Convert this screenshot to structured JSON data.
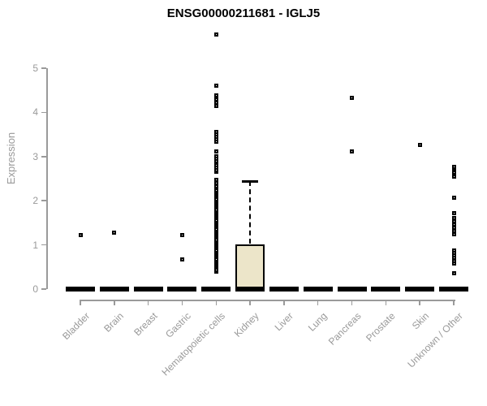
{
  "chart_data": {
    "type": "box",
    "title": "ENSG00000211681 - IGLJ5",
    "ylabel": "Expression",
    "xlabel": "",
    "ylim": [
      0,
      5
    ],
    "yticks": [
      0,
      1,
      2,
      3,
      4,
      5
    ],
    "grid": false,
    "legend": false,
    "categories": [
      "Bladder",
      "Brain",
      "Breast",
      "Gastric",
      "Hematopoietic cells",
      "Kidney",
      "Liver",
      "Lung",
      "Pancreas",
      "Prostate",
      "Skin",
      "Unknown / Other"
    ],
    "boxes": [
      {
        "category": "Bladder",
        "median": 0,
        "q1": 0,
        "q3": 0,
        "whisker_low": 0,
        "whisker_high": 0,
        "outliers": [
          1.23
        ]
      },
      {
        "category": "Brain",
        "median": 0,
        "q1": 0,
        "q3": 0,
        "whisker_low": 0,
        "whisker_high": 0,
        "outliers": [
          1.27
        ]
      },
      {
        "category": "Breast",
        "median": 0,
        "q1": 0,
        "q3": 0,
        "whisker_low": 0,
        "whisker_high": 0,
        "outliers": []
      },
      {
        "category": "Gastric",
        "median": 0,
        "q1": 0,
        "q3": 0,
        "whisker_low": 0,
        "whisker_high": 0,
        "outliers": [
          1.23,
          0.68
        ]
      },
      {
        "category": "Hematopoietic cells",
        "median": 0,
        "q1": 0,
        "q3": 0,
        "whisker_low": 0,
        "whisker_high": 0,
        "outliers": [
          0.4,
          0.44,
          0.48,
          0.52,
          0.56,
          0.6,
          0.64,
          0.68,
          0.72,
          0.76,
          0.8,
          0.84,
          0.88,
          0.92,
          0.96,
          1.0,
          1.04,
          1.08,
          1.12,
          1.16,
          1.2,
          1.24,
          1.28,
          1.32,
          1.36,
          1.4,
          1.44,
          1.48,
          1.52,
          1.56,
          1.6,
          1.64,
          1.68,
          1.72,
          1.76,
          1.8,
          1.84,
          1.88,
          1.92,
          1.96,
          2.0,
          2.04,
          2.08,
          2.12,
          2.16,
          2.2,
          2.24,
          2.28,
          2.32,
          2.4,
          2.48,
          2.65,
          2.7,
          2.75,
          2.8,
          2.85,
          2.9,
          2.95,
          3.0,
          3.11,
          3.33,
          3.39,
          3.45,
          3.51,
          3.56,
          4.15,
          4.22,
          4.3,
          4.38,
          4.61,
          5.77
        ]
      },
      {
        "category": "Kidney",
        "median": 0,
        "q1": 0,
        "q3": 1.02,
        "whisker_low": 0,
        "whisker_high": 2.44,
        "outliers": []
      },
      {
        "category": "Liver",
        "median": 0,
        "q1": 0,
        "q3": 0,
        "whisker_low": 0,
        "whisker_high": 0,
        "outliers": []
      },
      {
        "category": "Lung",
        "median": 0,
        "q1": 0,
        "q3": 0,
        "whisker_low": 0,
        "whisker_high": 0,
        "outliers": []
      },
      {
        "category": "Pancreas",
        "median": 0,
        "q1": 0,
        "q3": 0,
        "whisker_low": 0,
        "whisker_high": 0,
        "outliers": [
          4.33,
          3.12
        ]
      },
      {
        "category": "Prostate",
        "median": 0,
        "q1": 0,
        "q3": 0,
        "whisker_low": 0,
        "whisker_high": 0,
        "outliers": []
      },
      {
        "category": "Skin",
        "median": 0,
        "q1": 0,
        "q3": 0,
        "whisker_low": 0,
        "whisker_high": 0,
        "outliers": [
          3.26
        ]
      },
      {
        "category": "Unknown / Other",
        "median": 0,
        "q1": 0,
        "q3": 0,
        "whisker_low": 0,
        "whisker_high": 0,
        "outliers": [
          2.76,
          2.72,
          2.68,
          2.64,
          2.54,
          2.07,
          1.72,
          1.6,
          1.53,
          1.46,
          1.39,
          1.32,
          1.24,
          0.88,
          0.82,
          0.76,
          0.7,
          0.64,
          0.58,
          0.35
        ]
      }
    ],
    "colors": {
      "box_fill": "#ece5c9",
      "box_border": "#000000",
      "median": "#000000",
      "outlier": "#000000",
      "axis": "#9a9a9a",
      "tick_text": "#999999",
      "title": "#000000"
    }
  }
}
